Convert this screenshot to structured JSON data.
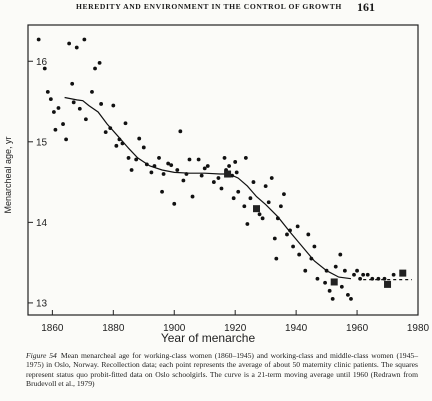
{
  "header": {
    "running_head": "HEREDITY AND ENVIRONMENT IN THE CONTROL OF GROWTH",
    "page_number": "161"
  },
  "caption": {
    "label": "Figure 54",
    "text": "Mean menarcheal age for working-class women (1860–1945) and working-class and middle-class women (1945–1975) in Oslo, Norway. Recollection data; each point represents the average of about 50 maternity clinic patients. The squares represent status quo probit-fitted data on Oslo schoolgirls. The curve is a 21-term moving average until 1960 (Redrawn from Brudevoll et al., 1979)"
  },
  "chart_data": {
    "type": "scatter",
    "title": "",
    "xlabel": "Year of menarche",
    "ylabel": "Menarcheal age, yr",
    "xlim": [
      1852,
      1980
    ],
    "ylim": [
      12.85,
      16.45
    ],
    "xticks": [
      1860,
      1880,
      1900,
      1920,
      1940,
      1960,
      1980
    ],
    "yticks": [
      13,
      14,
      15,
      16
    ],
    "grid": false,
    "series": [
      {
        "marker": "dot",
        "points": [
          [
            1855.5,
            16.27
          ],
          [
            1857.5,
            15.91
          ],
          [
            1858.5,
            15.62
          ],
          [
            1859.5,
            15.53
          ],
          [
            1860.5,
            15.37
          ],
          [
            1861.0,
            15.15
          ],
          [
            1862.0,
            15.42
          ],
          [
            1863.5,
            15.22
          ],
          [
            1864.5,
            15.03
          ],
          [
            1865.5,
            16.22
          ],
          [
            1866.5,
            15.72
          ],
          [
            1867.0,
            15.49
          ],
          [
            1868.0,
            16.17
          ],
          [
            1869.0,
            15.41
          ],
          [
            1870.5,
            16.27
          ],
          [
            1871.0,
            15.28
          ],
          [
            1873.0,
            15.62
          ],
          [
            1874.0,
            15.91
          ],
          [
            1875.5,
            15.98
          ],
          [
            1876.0,
            15.47
          ],
          [
            1877.5,
            15.12
          ],
          [
            1879.0,
            15.17
          ],
          [
            1880.0,
            15.45
          ],
          [
            1881.0,
            14.95
          ],
          [
            1882.0,
            15.03
          ],
          [
            1883.0,
            14.98
          ],
          [
            1884.0,
            15.23
          ],
          [
            1885.0,
            14.8
          ],
          [
            1886.0,
            14.65
          ],
          [
            1887.5,
            14.78
          ],
          [
            1888.5,
            15.04
          ],
          [
            1890.0,
            14.93
          ],
          [
            1891.0,
            14.72
          ],
          [
            1892.5,
            14.62
          ],
          [
            1893.5,
            14.7
          ],
          [
            1895.0,
            14.8
          ],
          [
            1896.0,
            14.38
          ],
          [
            1896.5,
            14.6
          ],
          [
            1898.0,
            14.73
          ],
          [
            1899.0,
            14.71
          ],
          [
            1900.0,
            14.23
          ],
          [
            1901.0,
            14.65
          ],
          [
            1902.0,
            15.13
          ],
          [
            1903.0,
            14.52
          ],
          [
            1904.0,
            14.6
          ],
          [
            1905.0,
            14.78
          ],
          [
            1906.0,
            14.32
          ],
          [
            1908.0,
            14.78
          ],
          [
            1909.0,
            14.58
          ],
          [
            1910.0,
            14.67
          ],
          [
            1911.0,
            14.7
          ],
          [
            1913.0,
            14.5
          ],
          [
            1914.5,
            14.55
          ],
          [
            1915.5,
            14.42
          ],
          [
            1916.5,
            14.8
          ],
          [
            1917.0,
            14.65
          ],
          [
            1918.0,
            14.7
          ],
          [
            1919.0,
            14.58
          ],
          [
            1919.5,
            14.3
          ],
          [
            1920.0,
            14.75
          ],
          [
            1920.5,
            14.62
          ],
          [
            1921.0,
            14.38
          ],
          [
            1923.0,
            14.2
          ],
          [
            1923.5,
            14.8
          ],
          [
            1924.0,
            13.98
          ],
          [
            1925.0,
            14.3
          ],
          [
            1926.0,
            14.5
          ],
          [
            1928.0,
            14.1
          ],
          [
            1929.0,
            14.05
          ],
          [
            1930.0,
            14.45
          ],
          [
            1931.0,
            14.25
          ],
          [
            1932.0,
            14.55
          ],
          [
            1933.0,
            13.8
          ],
          [
            1933.5,
            13.55
          ],
          [
            1934.0,
            14.05
          ],
          [
            1935.0,
            14.2
          ],
          [
            1936.0,
            14.35
          ],
          [
            1937.0,
            13.85
          ],
          [
            1938.0,
            13.9
          ],
          [
            1939.0,
            13.7
          ],
          [
            1940.5,
            13.95
          ],
          [
            1941.0,
            13.6
          ],
          [
            1943.0,
            13.4
          ],
          [
            1944.0,
            13.85
          ],
          [
            1945.0,
            13.55
          ],
          [
            1946.0,
            13.7
          ],
          [
            1947.0,
            13.3
          ],
          [
            1949.5,
            13.25
          ],
          [
            1950.0,
            13.4
          ],
          [
            1951.0,
            13.15
          ],
          [
            1952.0,
            13.05
          ],
          [
            1953.0,
            13.45
          ],
          [
            1954.5,
            13.6
          ],
          [
            1955.0,
            13.2
          ],
          [
            1956.0,
            13.4
          ],
          [
            1957.0,
            13.1
          ],
          [
            1958.0,
            13.05
          ],
          [
            1959.0,
            13.35
          ],
          [
            1960.0,
            13.4
          ],
          [
            1961.0,
            13.3
          ],
          [
            1962.0,
            13.35
          ],
          [
            1963.5,
            13.35
          ],
          [
            1965.0,
            13.3
          ],
          [
            1967.0,
            13.3
          ],
          [
            1969.0,
            13.3
          ],
          [
            1972.0,
            13.35
          ]
        ]
      },
      {
        "marker": "square",
        "points": [
          [
            1917.5,
            14.6
          ],
          [
            1927.0,
            14.17
          ],
          [
            1952.5,
            13.26
          ],
          [
            1970.0,
            13.23
          ],
          [
            1975.0,
            13.37
          ]
        ]
      },
      {
        "marker": "line",
        "points": [
          [
            1864,
            15.55
          ],
          [
            1868,
            15.52
          ],
          [
            1870,
            15.51
          ],
          [
            1872,
            15.45
          ],
          [
            1875,
            15.37
          ],
          [
            1878,
            15.22
          ],
          [
            1882,
            15.05
          ],
          [
            1885,
            14.92
          ],
          [
            1888,
            14.8
          ],
          [
            1892,
            14.7
          ],
          [
            1896,
            14.65
          ],
          [
            1900,
            14.62
          ],
          [
            1905,
            14.61
          ],
          [
            1910,
            14.61
          ],
          [
            1915,
            14.6
          ],
          [
            1918,
            14.6
          ],
          [
            1921,
            14.55
          ],
          [
            1924,
            14.45
          ],
          [
            1927,
            14.32
          ],
          [
            1930,
            14.22
          ],
          [
            1934,
            14.07
          ],
          [
            1938,
            13.88
          ],
          [
            1942,
            13.7
          ],
          [
            1946,
            13.52
          ],
          [
            1950,
            13.4
          ],
          [
            1954,
            13.32
          ],
          [
            1958,
            13.3
          ],
          [
            1962,
            13.29
          ],
          [
            1966,
            13.29
          ],
          [
            1972,
            13.29
          ],
          [
            1978,
            13.29
          ]
        ],
        "dashed_from_x": 1960
      }
    ]
  }
}
